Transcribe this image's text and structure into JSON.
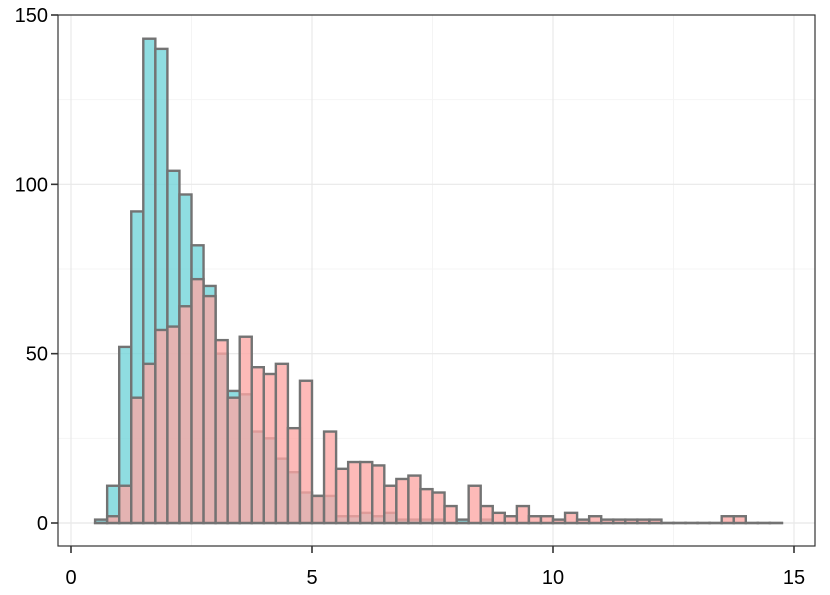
{
  "chart_data": {
    "type": "bar",
    "subtype": "overlapping-histogram",
    "title": "",
    "xlabel": "",
    "ylabel": "",
    "xlim": [
      0,
      15
    ],
    "ylim": [
      0,
      150
    ],
    "x_ticks": [
      0,
      5,
      10,
      15
    ],
    "y_ticks": [
      0,
      50,
      100,
      150
    ],
    "x_tick_labels": [
      "0",
      "5",
      "10",
      "15"
    ],
    "y_tick_labels": [
      "0",
      "50",
      "100",
      "150"
    ],
    "grid": true,
    "legend": "none",
    "bin_width": 0.25,
    "bin_starts": [
      0.5,
      0.75,
      1.0,
      1.25,
      1.5,
      1.75,
      2.0,
      2.25,
      2.5,
      2.75,
      3.0,
      3.25,
      3.5,
      3.75,
      4.0,
      4.25,
      4.5,
      4.75,
      5.0,
      5.25,
      5.5,
      5.75,
      6.0,
      6.25,
      6.5,
      6.75,
      7.0,
      7.25,
      7.5,
      7.75,
      8.0,
      8.25,
      8.5,
      8.75,
      9.0,
      9.25,
      9.5,
      9.75,
      10.0,
      10.25,
      10.5,
      10.75,
      11.0,
      11.25,
      11.5,
      11.75,
      12.0,
      12.25,
      12.5,
      12.75,
      13.0,
      13.25,
      13.5,
      13.75,
      14.0,
      14.25,
      14.5
    ],
    "series": [
      {
        "color": "#6fd3d8",
        "values": [
          1,
          11,
          52,
          92,
          143,
          140,
          104,
          97,
          82,
          70,
          50,
          39,
          38,
          27,
          25,
          19,
          15,
          9,
          8,
          8,
          2,
          2,
          3,
          2,
          3,
          1,
          1,
          1,
          1,
          0,
          1,
          0,
          1,
          0,
          0,
          0,
          0,
          0,
          0,
          0,
          0,
          0,
          0,
          0,
          0,
          0,
          0,
          0,
          0,
          0,
          0,
          0,
          0,
          0,
          0,
          0,
          0
        ]
      },
      {
        "color": "#fca7a4",
        "values": [
          0,
          2,
          11,
          37,
          47,
          57,
          58,
          64,
          72,
          67,
          54,
          37,
          55,
          46,
          44,
          47,
          28,
          42,
          8,
          27,
          16,
          18,
          18,
          17,
          11,
          13,
          14,
          10,
          9,
          5,
          0,
          11,
          5,
          3,
          2,
          5,
          2,
          2,
          1,
          3,
          1,
          2,
          1,
          1,
          1,
          1,
          1,
          0,
          0,
          0,
          0,
          0,
          2,
          2,
          0,
          0,
          0
        ]
      }
    ],
    "colors": {
      "series_fill_1": "#6fd3d8",
      "series_fill_2": "#fca7a4",
      "bar_outline": "#737373",
      "panel_border": "#333333",
      "grid": "#ebebeb"
    }
  }
}
